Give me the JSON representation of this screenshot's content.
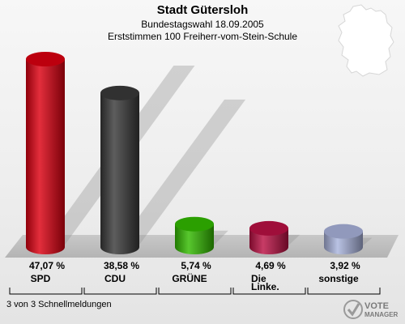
{
  "header": {
    "title": "Stadt Gütersloh",
    "subtitle": "Bundestagswahl 18.09.2005",
    "subtitle2": "Erststimmen 100 Freiherr-vom-Stein-Schule"
  },
  "footer": {
    "status": "3 von 3 Schnellmeldungen"
  },
  "logo": {
    "line1": "VOTE",
    "line2": "MANAGER"
  },
  "chart_data": {
    "type": "bar",
    "title": "Stadt Gütersloh",
    "categories": [
      "SPD",
      "CDU",
      "GRÜNE",
      "Die Linke.",
      "sonstige"
    ],
    "category_lines": [
      [
        "SPD"
      ],
      [
        "CDU"
      ],
      [
        "GRÜNE"
      ],
      [
        "Die",
        "Linke."
      ],
      [
        "sonstige"
      ]
    ],
    "values": [
      47.07,
      38.58,
      5.74,
      4.69,
      3.92
    ],
    "value_labels": [
      "47,07 %",
      "38,58 %",
      "5,74 %",
      "4,69 %",
      "3,92 %"
    ],
    "colors": [
      "#dd0011",
      "#3a3a3a",
      "#33bb00",
      "#bb1144",
      "#aab4dd"
    ],
    "unit": "%",
    "ylim": [
      0,
      50
    ],
    "grid": false,
    "legend": "none"
  }
}
